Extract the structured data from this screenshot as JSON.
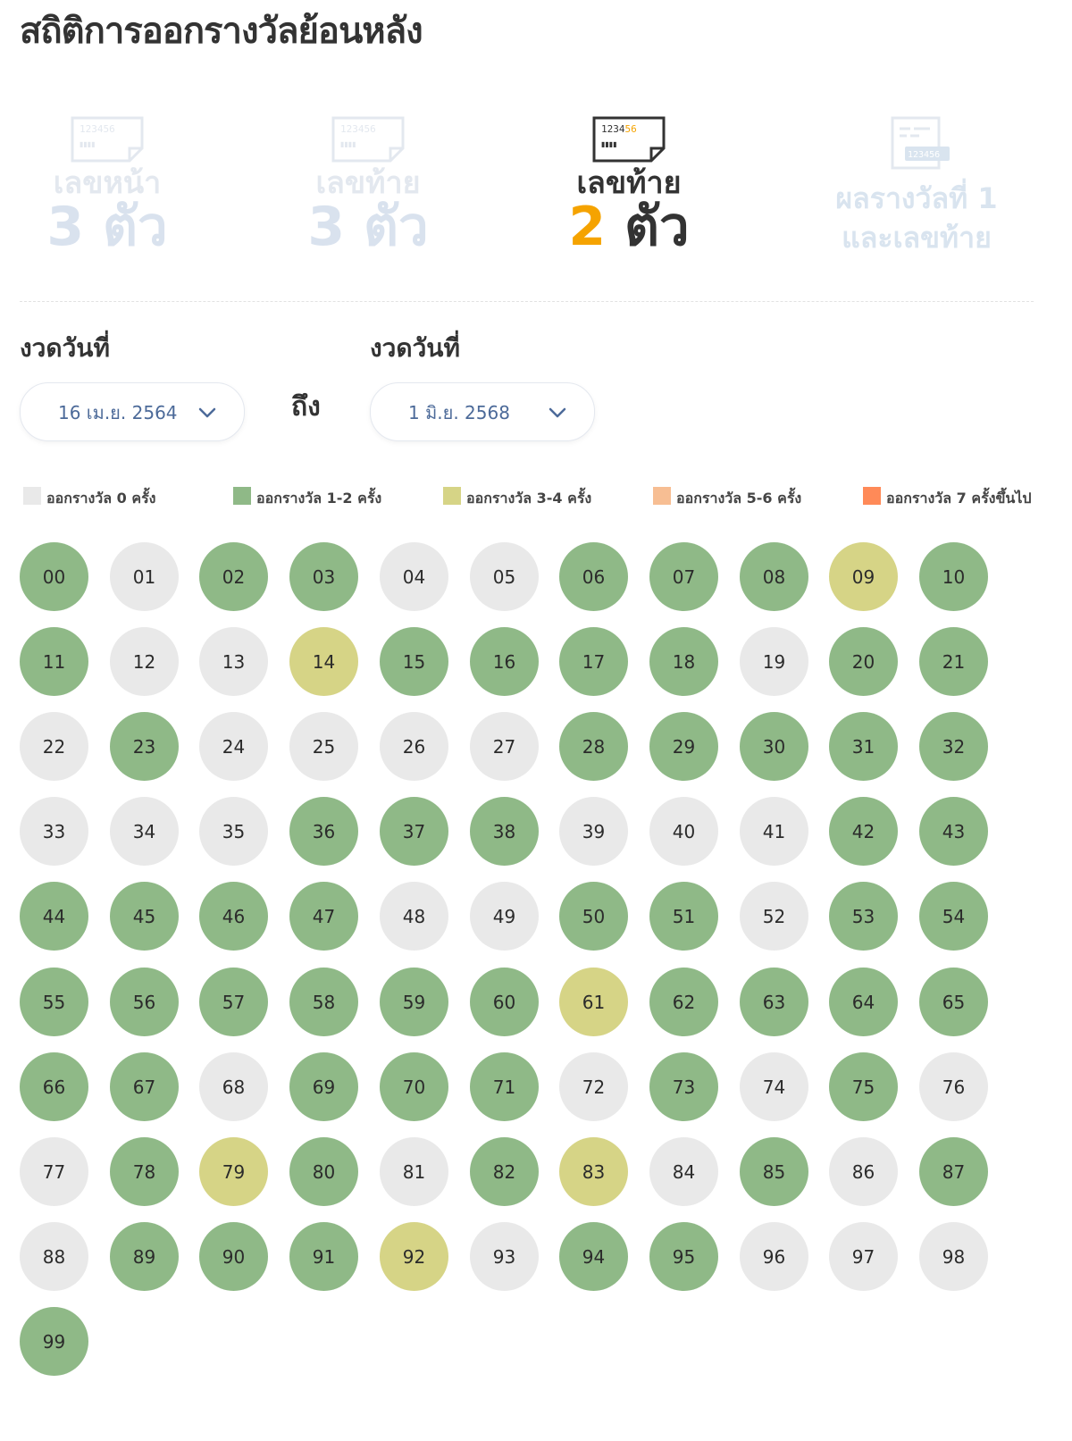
{
  "page": {
    "title": "สถิติการออกรางวัลย้อนหลัง"
  },
  "tabs": [
    {
      "line1": "เลขหน้า",
      "digit": "3",
      "unit": "ตัว",
      "active": false
    },
    {
      "line1": "เลขท้าย",
      "digit": "3",
      "unit": "ตัว",
      "active": false
    },
    {
      "line1": "เลขท้าย",
      "digit": "2",
      "unit": "ตัว",
      "active": true
    },
    {
      "line1": "ผลรางวัลที่ 1",
      "line2": "และเลขท้าย",
      "active": false
    }
  ],
  "ticket_icon": {
    "digits": "123456",
    "marks": "▮▮▮▮",
    "badge": "123456"
  },
  "date_range": {
    "from_label": "งวดวันที่",
    "from_value": "16 เม.ย. 2564",
    "to_word": "ถึง",
    "to_label": "งวดวันที่",
    "to_value": "1 มิ.ย. 2568"
  },
  "legend": [
    {
      "label": "ออกรางวัล 0 ครั้ง",
      "color": "#e9e9e9"
    },
    {
      "label": "ออกรางวัล 1-2 ครั้ง",
      "color": "#8fb987"
    },
    {
      "label": "ออกรางวัล 3-4 ครั้ง",
      "color": "#d6d486"
    },
    {
      "label": "ออกรางวัล 5-6 ครั้ง",
      "color": "#f7be93"
    },
    {
      "label": "ออกรางวัล 7 ครั้งขึ้นไป",
      "color": "#ff8a58"
    }
  ],
  "numbers": [
    {
      "n": "00",
      "level": "1-2"
    },
    {
      "n": "01",
      "level": "0"
    },
    {
      "n": "02",
      "level": "1-2"
    },
    {
      "n": "03",
      "level": "1-2"
    },
    {
      "n": "04",
      "level": "0"
    },
    {
      "n": "05",
      "level": "0"
    },
    {
      "n": "06",
      "level": "1-2"
    },
    {
      "n": "07",
      "level": "1-2"
    },
    {
      "n": "08",
      "level": "1-2"
    },
    {
      "n": "09",
      "level": "3-4"
    },
    {
      "n": "10",
      "level": "1-2"
    },
    {
      "n": "11",
      "level": "1-2"
    },
    {
      "n": "12",
      "level": "0"
    },
    {
      "n": "13",
      "level": "0"
    },
    {
      "n": "14",
      "level": "3-4"
    },
    {
      "n": "15",
      "level": "1-2"
    },
    {
      "n": "16",
      "level": "1-2"
    },
    {
      "n": "17",
      "level": "1-2"
    },
    {
      "n": "18",
      "level": "1-2"
    },
    {
      "n": "19",
      "level": "0"
    },
    {
      "n": "20",
      "level": "1-2"
    },
    {
      "n": "21",
      "level": "1-2"
    },
    {
      "n": "22",
      "level": "0"
    },
    {
      "n": "23",
      "level": "1-2"
    },
    {
      "n": "24",
      "level": "0"
    },
    {
      "n": "25",
      "level": "0"
    },
    {
      "n": "26",
      "level": "0"
    },
    {
      "n": "27",
      "level": "0"
    },
    {
      "n": "28",
      "level": "1-2"
    },
    {
      "n": "29",
      "level": "1-2"
    },
    {
      "n": "30",
      "level": "1-2"
    },
    {
      "n": "31",
      "level": "1-2"
    },
    {
      "n": "32",
      "level": "1-2"
    },
    {
      "n": "33",
      "level": "0"
    },
    {
      "n": "34",
      "level": "0"
    },
    {
      "n": "35",
      "level": "0"
    },
    {
      "n": "36",
      "level": "1-2"
    },
    {
      "n": "37",
      "level": "1-2"
    },
    {
      "n": "38",
      "level": "1-2"
    },
    {
      "n": "39",
      "level": "0"
    },
    {
      "n": "40",
      "level": "0"
    },
    {
      "n": "41",
      "level": "0"
    },
    {
      "n": "42",
      "level": "1-2"
    },
    {
      "n": "43",
      "level": "1-2"
    },
    {
      "n": "44",
      "level": "1-2"
    },
    {
      "n": "45",
      "level": "1-2"
    },
    {
      "n": "46",
      "level": "1-2"
    },
    {
      "n": "47",
      "level": "1-2"
    },
    {
      "n": "48",
      "level": "0"
    },
    {
      "n": "49",
      "level": "0"
    },
    {
      "n": "50",
      "level": "1-2"
    },
    {
      "n": "51",
      "level": "1-2"
    },
    {
      "n": "52",
      "level": "0"
    },
    {
      "n": "53",
      "level": "1-2"
    },
    {
      "n": "54",
      "level": "1-2"
    },
    {
      "n": "55",
      "level": "1-2"
    },
    {
      "n": "56",
      "level": "1-2"
    },
    {
      "n": "57",
      "level": "1-2"
    },
    {
      "n": "58",
      "level": "1-2"
    },
    {
      "n": "59",
      "level": "1-2"
    },
    {
      "n": "60",
      "level": "1-2"
    },
    {
      "n": "61",
      "level": "3-4"
    },
    {
      "n": "62",
      "level": "1-2"
    },
    {
      "n": "63",
      "level": "1-2"
    },
    {
      "n": "64",
      "level": "1-2"
    },
    {
      "n": "65",
      "level": "1-2"
    },
    {
      "n": "66",
      "level": "1-2"
    },
    {
      "n": "67",
      "level": "1-2"
    },
    {
      "n": "68",
      "level": "0"
    },
    {
      "n": "69",
      "level": "1-2"
    },
    {
      "n": "70",
      "level": "1-2"
    },
    {
      "n": "71",
      "level": "1-2"
    },
    {
      "n": "72",
      "level": "0"
    },
    {
      "n": "73",
      "level": "1-2"
    },
    {
      "n": "74",
      "level": "0"
    },
    {
      "n": "75",
      "level": "1-2"
    },
    {
      "n": "76",
      "level": "0"
    },
    {
      "n": "77",
      "level": "0"
    },
    {
      "n": "78",
      "level": "1-2"
    },
    {
      "n": "79",
      "level": "3-4"
    },
    {
      "n": "80",
      "level": "1-2"
    },
    {
      "n": "81",
      "level": "0"
    },
    {
      "n": "82",
      "level": "1-2"
    },
    {
      "n": "83",
      "level": "3-4"
    },
    {
      "n": "84",
      "level": "0"
    },
    {
      "n": "85",
      "level": "1-2"
    },
    {
      "n": "86",
      "level": "0"
    },
    {
      "n": "87",
      "level": "1-2"
    },
    {
      "n": "88",
      "level": "0"
    },
    {
      "n": "89",
      "level": "1-2"
    },
    {
      "n": "90",
      "level": "1-2"
    },
    {
      "n": "91",
      "level": "1-2"
    },
    {
      "n": "92",
      "level": "3-4"
    },
    {
      "n": "93",
      "level": "0"
    },
    {
      "n": "94",
      "level": "1-2"
    },
    {
      "n": "95",
      "level": "1-2"
    },
    {
      "n": "96",
      "level": "0"
    },
    {
      "n": "97",
      "level": "0"
    },
    {
      "n": "98",
      "level": "0"
    },
    {
      "n": "99",
      "level": "1-2"
    }
  ]
}
